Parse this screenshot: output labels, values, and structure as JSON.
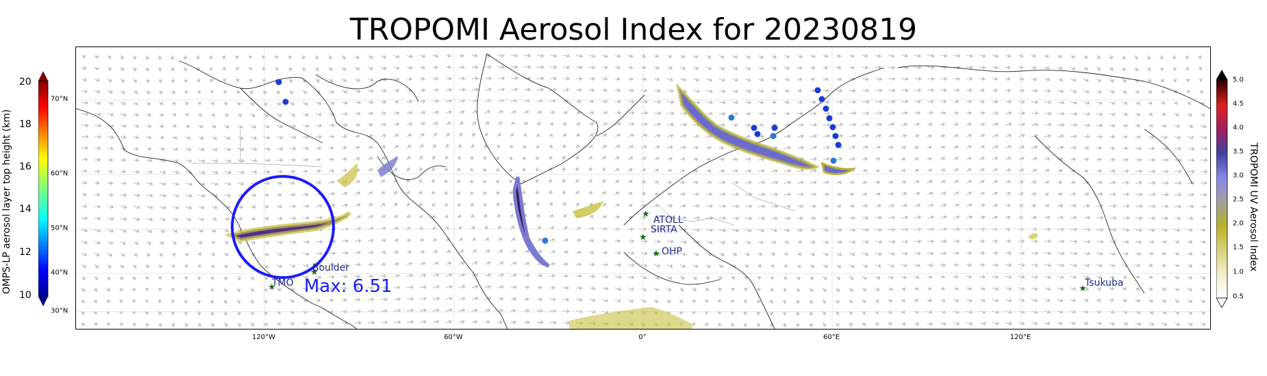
{
  "title": "TROPOMI Aerosol Index for 20230819",
  "left_colorbar": {
    "label": "OMPS-LP aerosol layer top height (km)",
    "ticks": [
      "20",
      "18",
      "16",
      "14",
      "12",
      "10"
    ]
  },
  "right_colorbar": {
    "label": "TROPOMI UV Aerosol Index",
    "ticks": [
      "5.0",
      "4.5",
      "4.0",
      "3.5",
      "3.0",
      "2.5",
      "2.0",
      "1.5",
      "1.0",
      "0.5"
    ]
  },
  "latitude_labels": [
    "70°N",
    "60°N",
    "50°N",
    "40°N",
    "30°N"
  ],
  "longitude_labels": [
    "120°W",
    "60°W",
    "0°",
    "60°E",
    "120°E"
  ],
  "sites": [
    {
      "name": "ATOLL"
    },
    {
      "name": "SIRTA"
    },
    {
      "name": "OHP"
    },
    {
      "name": "Boulder"
    },
    {
      "name": "TMO"
    },
    {
      "name": "Tsukuba"
    }
  ],
  "max_label": "Max: 6.51",
  "colors": {
    "circle": "#1a1aff",
    "site_star": "#0b6b0b",
    "site_text": "#1a2a8c",
    "arrow": "#b0b0b0"
  }
}
